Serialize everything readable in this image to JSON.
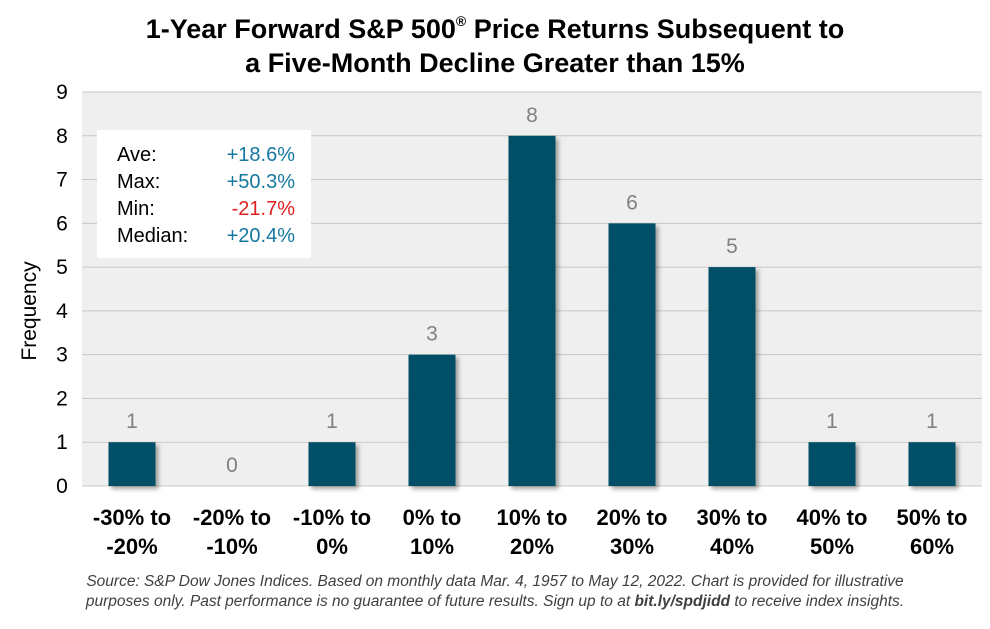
{
  "title_line1": "1-Year Forward S&P 500",
  "title_reg": "®",
  "title_line1_end": " Price Returns Subsequent to",
  "title_line2": "a Five-Month Decline Greater than 15%",
  "chart_data": {
    "type": "bar",
    "categories": [
      [
        "-30% to",
        "-20%"
      ],
      [
        "-20% to",
        "-10%"
      ],
      [
        "-10% to",
        "0%"
      ],
      [
        "0% to",
        "10%"
      ],
      [
        "10% to",
        "20%"
      ],
      [
        "20% to",
        "30%"
      ],
      [
        "30% to",
        "40%"
      ],
      [
        "40% to",
        "50%"
      ],
      [
        "50% to",
        "60%"
      ]
    ],
    "values": [
      1,
      0,
      1,
      3,
      8,
      6,
      5,
      1,
      1
    ],
    "ylabel": "Frequency",
    "ylim": [
      0,
      9
    ],
    "yticks": [
      "0",
      "1",
      "2",
      "3",
      "4",
      "5",
      "6",
      "7",
      "8",
      "9"
    ],
    "grid": true,
    "bar_color": "#004f66",
    "label_color": "#808080"
  },
  "stats": [
    {
      "label": "Ave:",
      "value": "+18.6%",
      "color": "#1478a0"
    },
    {
      "label": "Max:",
      "value": "+50.3%",
      "color": "#1478a0"
    },
    {
      "label": "Min:",
      "value": "-21.7%",
      "color": "#e02020"
    },
    {
      "label": "Median:",
      "value": "+20.4%",
      "color": "#1478a0"
    }
  ],
  "source_line1": "Source: S&P Dow Jones Indices.  Based on monthly data Mar. 4, 1957 to May 12, 2022.  Chart is provided for illustrative",
  "source_line2_pre": "purposes only. Past performance is no guarantee of future results. Sign up to at ",
  "source_link": "bit.ly/spdjidd",
  "source_line2_post": " to receive index insights."
}
